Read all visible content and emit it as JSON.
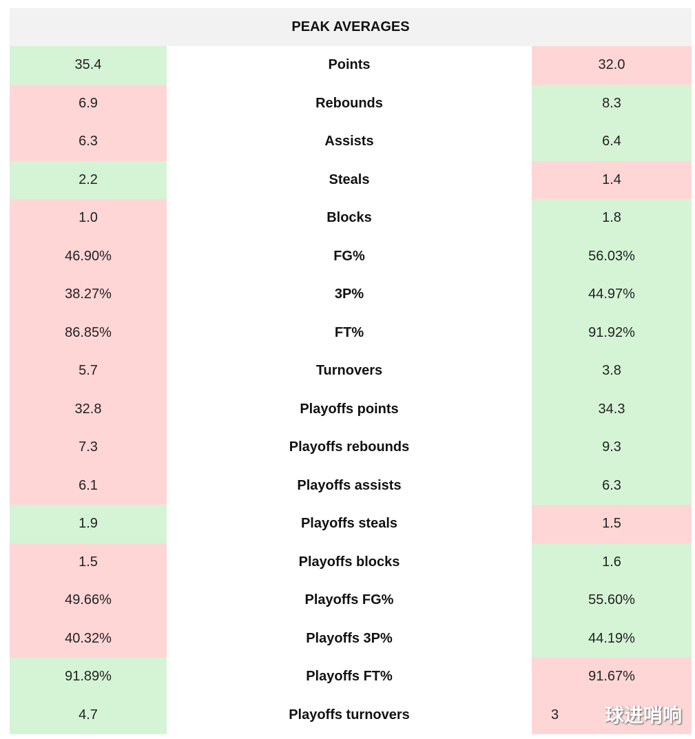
{
  "header": {
    "title": "PEAK AVERAGES"
  },
  "colors": {
    "better": "#d5f4d6",
    "worse": "#ffd6d6",
    "header": "#f2f2f2"
  },
  "rows": [
    {
      "label": "Points",
      "left": "35.4",
      "right": "32.0",
      "left_better": true
    },
    {
      "label": "Rebounds",
      "left": "6.9",
      "right": "8.3",
      "left_better": false
    },
    {
      "label": "Assists",
      "left": "6.3",
      "right": "6.4",
      "left_better": false
    },
    {
      "label": "Steals",
      "left": "2.2",
      "right": "1.4",
      "left_better": true
    },
    {
      "label": "Blocks",
      "left": "1.0",
      "right": "1.8",
      "left_better": false
    },
    {
      "label": "FG%",
      "left": "46.90%",
      "right": "56.03%",
      "left_better": false
    },
    {
      "label": "3P%",
      "left": "38.27%",
      "right": "44.97%",
      "left_better": false
    },
    {
      "label": "FT%",
      "left": "86.85%",
      "right": "91.92%",
      "left_better": false
    },
    {
      "label": "Turnovers",
      "left": "5.7",
      "right": "3.8",
      "left_better": false
    },
    {
      "label": "Playoffs points",
      "left": "32.8",
      "right": "34.3",
      "left_better": false
    },
    {
      "label": "Playoffs rebounds",
      "left": "7.3",
      "right": "9.3",
      "left_better": false
    },
    {
      "label": "Playoffs assists",
      "left": "6.1",
      "right": "6.3",
      "left_better": false
    },
    {
      "label": "Playoffs steals",
      "left": "1.9",
      "right": "1.5",
      "left_better": true
    },
    {
      "label": "Playoffs blocks",
      "left": "1.5",
      "right": "1.6",
      "left_better": false
    },
    {
      "label": "Playoffs FG%",
      "left": "49.66%",
      "right": "55.60%",
      "left_better": false
    },
    {
      "label": "Playoffs 3P%",
      "left": "40.32%",
      "right": "44.19%",
      "left_better": false
    },
    {
      "label": "Playoffs FT%",
      "left": "91.89%",
      "right": "91.67%",
      "left_better": true
    },
    {
      "label": "Playoffs turnovers",
      "left": "4.7",
      "right": "3",
      "left_better": true
    }
  ],
  "watermark": "球进哨响"
}
